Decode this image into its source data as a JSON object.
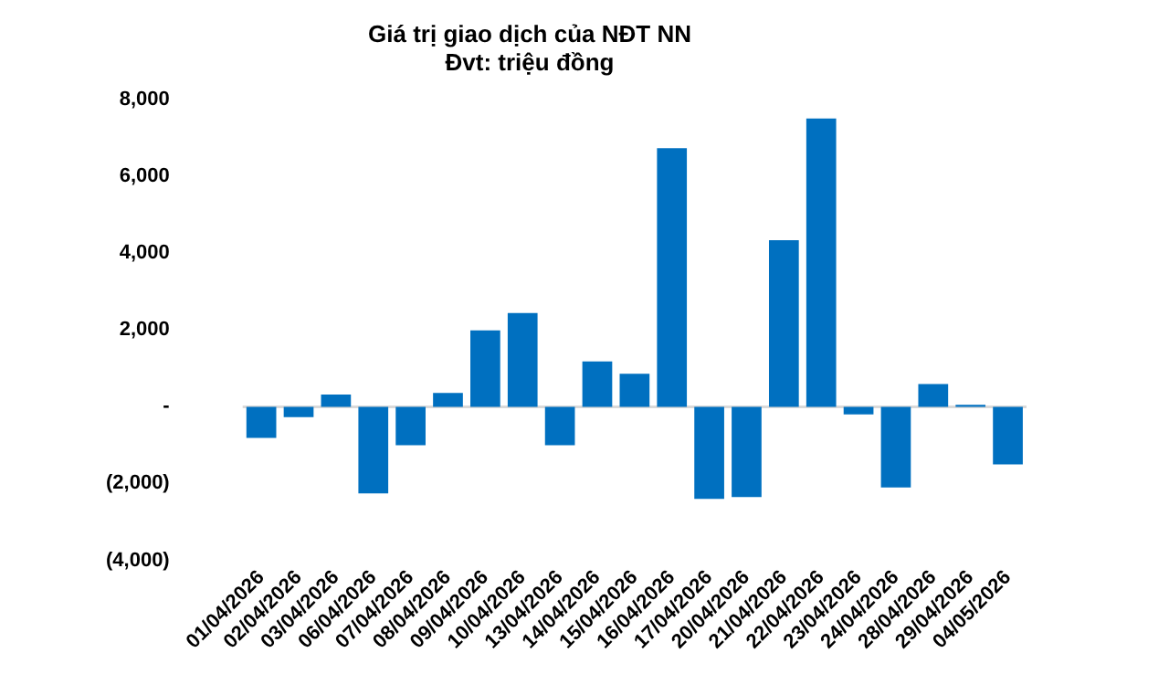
{
  "chart_data": {
    "type": "bar",
    "title": "Giá trị giao dịch của NĐT NN",
    "subtitle": "Đvt: triệu đồng",
    "categories": [
      "01/04/2026",
      "02/04/2026",
      "03/04/2026",
      "06/04/2026",
      "07/04/2026",
      "08/04/2026",
      "09/04/2026",
      "10/04/2026",
      "13/04/2026",
      "14/04/2026",
      "15/04/2026",
      "16/04/2026",
      "17/04/2026",
      "20/04/2026",
      "21/04/2026",
      "22/04/2026",
      "23/04/2026",
      "24/04/2026",
      "28/04/2026",
      "29/04/2026",
      "04/05/2026"
    ],
    "values": [
      -810,
      -270,
      320,
      -2260,
      -1000,
      360,
      1990,
      2440,
      -1000,
      1180,
      860,
      6740,
      -2400,
      -2350,
      4340,
      7510,
      -200,
      -2100,
      590,
      50,
      -1500
    ],
    "color": "#0070c0",
    "ylim": [
      -4000,
      8000
    ],
    "yticks": [
      {
        "value": -4000,
        "label": "(4,000)"
      },
      {
        "value": -2000,
        "label": "(2,000)"
      },
      {
        "value": 0,
        "label": "-"
      },
      {
        "value": 2000,
        "label": "2,000"
      },
      {
        "value": 4000,
        "label": "4,000"
      },
      {
        "value": 6000,
        "label": "6,000"
      },
      {
        "value": 8000,
        "label": "8,000"
      }
    ],
    "ref_lines": [
      {
        "axis": "y",
        "value": 0,
        "color": "#d9d9d9"
      }
    ],
    "grid": false,
    "legend": false
  }
}
